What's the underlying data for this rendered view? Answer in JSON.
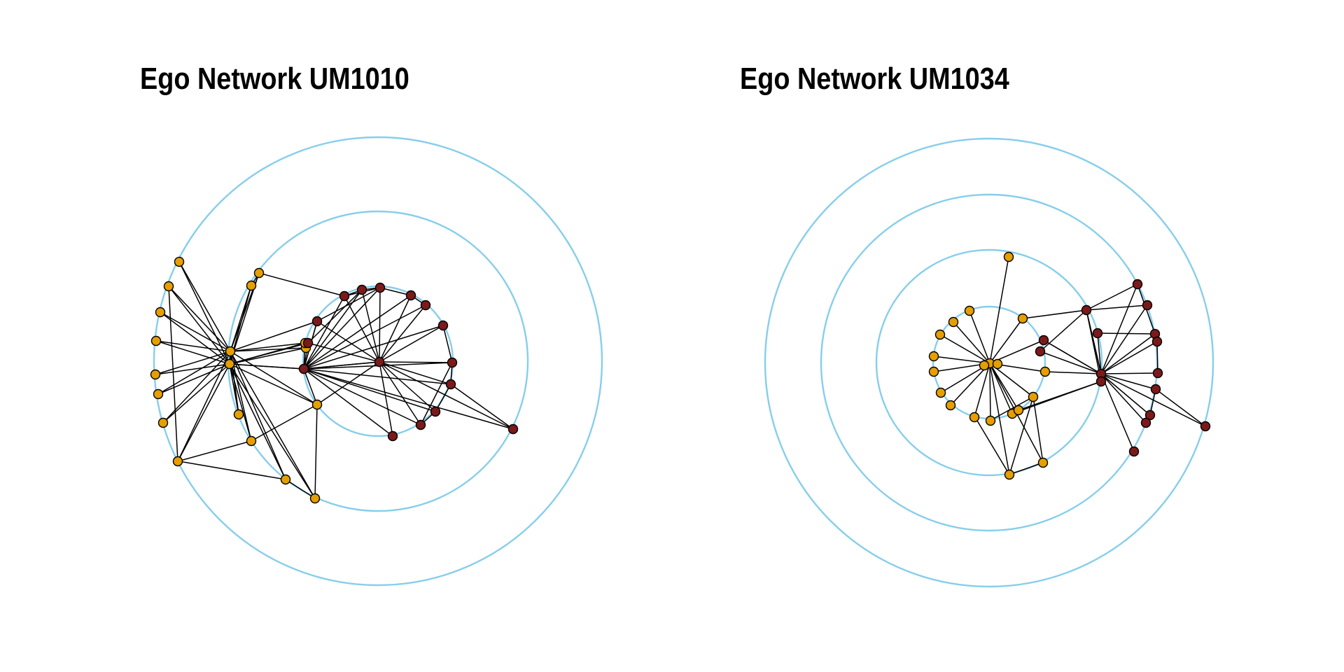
{
  "colors": {
    "ring": "#87CEEB",
    "edge": "#000000",
    "node_group_a": "#E69F00",
    "node_group_b": "#7B1A1A",
    "node_outline": "#000000"
  },
  "panels": [
    {
      "title": "Ego Network UM1010",
      "rings": 3,
      "nodes_group_a": 19,
      "nodes_group_b": 17
    },
    {
      "title": "Ego Network UM1034",
      "rings": 4,
      "nodes_group_a": 20,
      "nodes_group_b": 16
    }
  ]
}
